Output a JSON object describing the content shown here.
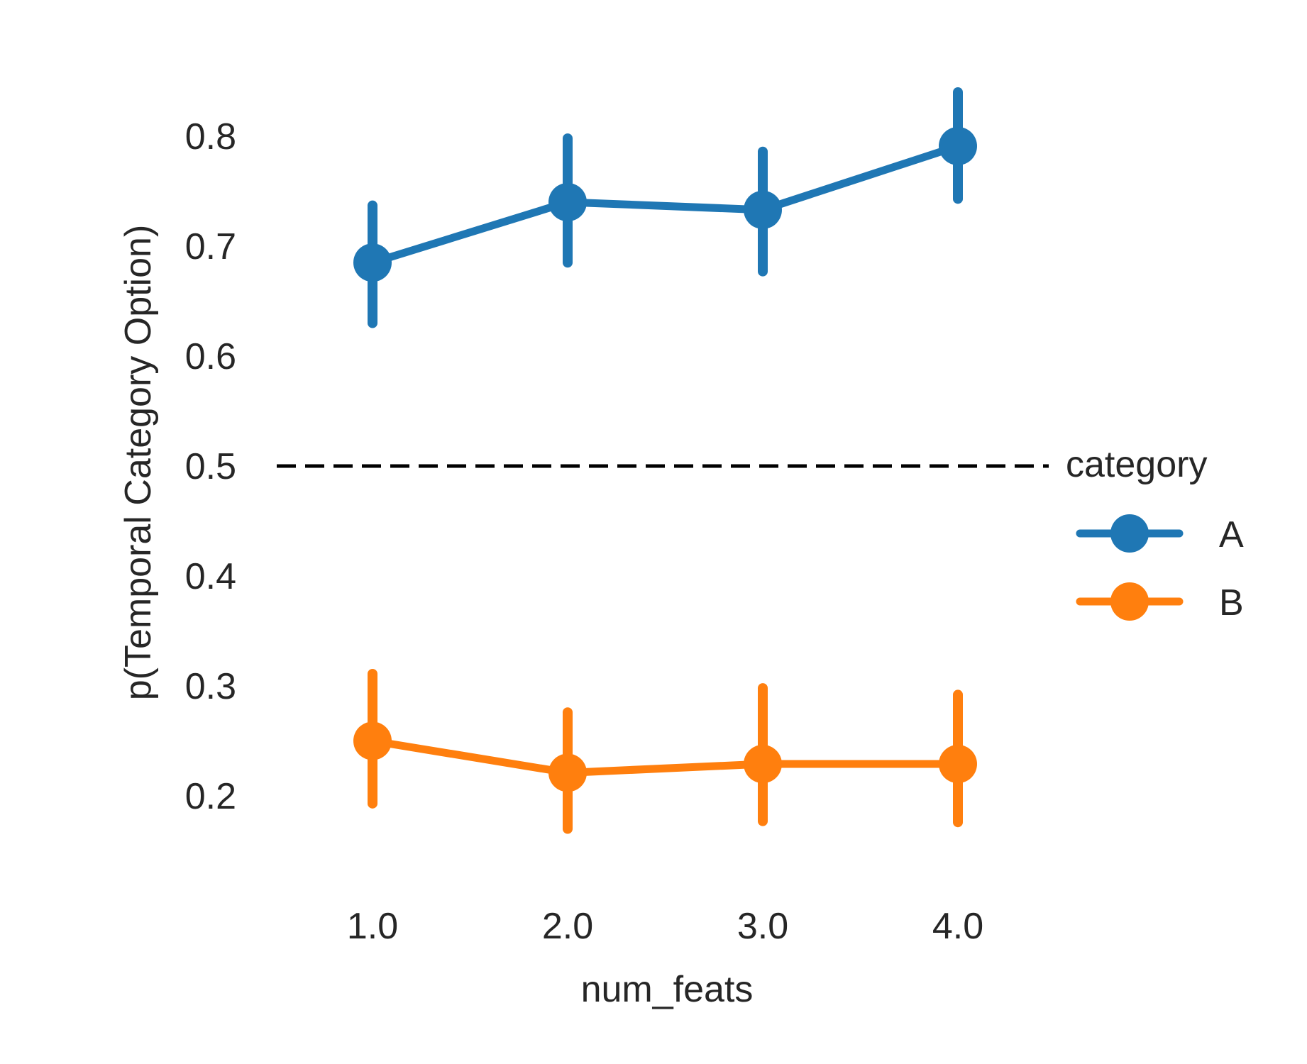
{
  "chart_data": {
    "type": "line",
    "title": "",
    "xlabel": "num_feats",
    "ylabel": "p(Temporal Category Option)",
    "categories": [
      "1.0",
      "2.0",
      "3.0",
      "4.0"
    ],
    "yticks": [
      "0.2",
      "0.3",
      "0.4",
      "0.5",
      "0.6",
      "0.7",
      "0.8"
    ],
    "ylim": [
      0.12,
      0.86
    ],
    "grid": false,
    "legend": {
      "title": "category",
      "placement": "center-right"
    },
    "reference_line": {
      "y": 0.5,
      "style": "dashed",
      "color": "#000000"
    },
    "series": [
      {
        "name": "A",
        "color": "#1f77b4",
        "values": [
          0.685,
          0.74,
          0.733,
          0.791
        ],
        "ci_low": [
          0.63,
          0.685,
          0.677,
          0.743
        ],
        "ci_high": [
          0.737,
          0.798,
          0.786,
          0.84
        ]
      },
      {
        "name": "B",
        "color": "#ff7f0e",
        "values": [
          0.25,
          0.221,
          0.229,
          0.229
        ],
        "ci_low": [
          0.193,
          0.17,
          0.177,
          0.176
        ],
        "ci_high": [
          0.311,
          0.276,
          0.298,
          0.292
        ]
      }
    ]
  }
}
